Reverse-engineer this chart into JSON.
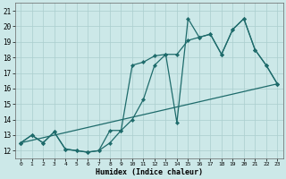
{
  "xlabel": "Humidex (Indice chaleur)",
  "xlim": [
    -0.5,
    23.5
  ],
  "ylim": [
    11.5,
    21.5
  ],
  "xticks": [
    0,
    1,
    2,
    3,
    4,
    5,
    6,
    7,
    8,
    9,
    10,
    11,
    12,
    13,
    14,
    15,
    16,
    17,
    18,
    19,
    20,
    21,
    22,
    23
  ],
  "yticks": [
    12,
    13,
    14,
    15,
    16,
    17,
    18,
    19,
    20,
    21
  ],
  "background_color": "#cce8e8",
  "grid_color": "#aacece",
  "line_color": "#1e6b6b",
  "line1_x": [
    0,
    1,
    2,
    3,
    4,
    5,
    6,
    7,
    8,
    9,
    10,
    11,
    12,
    13,
    14,
    15,
    16,
    17,
    18,
    19,
    20,
    21,
    22,
    23
  ],
  "line1_y": [
    12.5,
    13.0,
    12.5,
    13.2,
    12.1,
    12.0,
    11.9,
    12.0,
    13.3,
    13.3,
    17.5,
    17.7,
    18.1,
    18.2,
    13.8,
    20.5,
    19.3,
    19.5,
    18.2,
    19.8,
    20.5,
    18.5,
    17.5,
    16.3
  ],
  "line2_x": [
    0,
    1,
    2,
    3,
    4,
    5,
    6,
    7,
    8,
    9,
    10,
    11,
    12,
    13,
    14,
    15,
    16,
    17,
    18,
    19,
    20,
    21,
    22,
    23
  ],
  "line2_y": [
    12.5,
    13.0,
    12.5,
    13.2,
    12.1,
    12.0,
    11.9,
    12.0,
    12.5,
    13.3,
    14.0,
    15.3,
    17.5,
    18.2,
    18.2,
    19.1,
    19.3,
    19.5,
    18.2,
    19.8,
    20.5,
    18.5,
    17.5,
    16.3
  ],
  "line3_x": [
    0,
    23
  ],
  "line3_y": [
    12.5,
    16.3
  ]
}
